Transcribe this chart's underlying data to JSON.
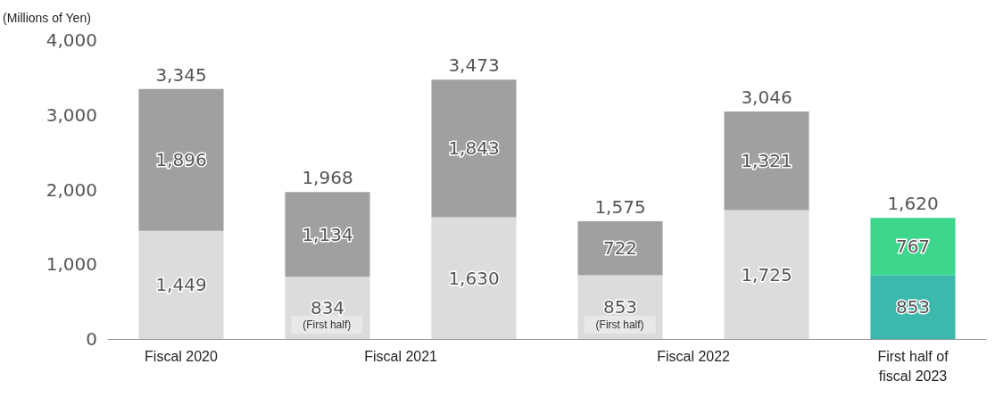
{
  "chart_data": {
    "type": "bar",
    "stacked": true,
    "ylabel": "(Millions of Yen)",
    "categories": [
      "Fiscal 2020",
      "Fiscal 2021",
      null,
      "Fiscal 2022",
      null,
      "First half of\nfiscal 2023"
    ],
    "series": [
      {
        "values": [
          1449,
          834,
          1630,
          853,
          1725,
          853
        ],
        "value_labels": [
          "1,449",
          "834",
          "1,630",
          "853",
          "1,725",
          "853"
        ],
        "colors": [
          "#dcdcdc",
          "#dcdcdc",
          "#dcdcdc",
          "#dcdcdc",
          "#dcdcdc",
          "#3db8ad"
        ]
      },
      {
        "values": [
          1896,
          1134,
          1843,
          722,
          1321,
          767
        ],
        "value_labels": [
          "1,896",
          "1,134",
          "1,843",
          "722",
          "1,321",
          "767"
        ],
        "colors": [
          "#a0a0a0",
          "#a0a0a0",
          "#a0a0a0",
          "#a0a0a0",
          "#a0a0a0",
          "#3dd68c"
        ]
      }
    ],
    "totals": [
      "3,345",
      "1,968",
      "3,473",
      "1,575",
      "3,046",
      "1,620"
    ],
    "annotations": [
      "(First half)",
      "(First half)"
    ],
    "ylim": [
      0,
      4000
    ],
    "yticks": [
      0,
      {
        "value": 1000,
        "label": "1,000"
      },
      {
        "value": 2000,
        "label": "2,000"
      },
      {
        "value": 3000,
        "label": "3,000"
      },
      {
        "value": 4000,
        "label": "4,000"
      }
    ],
    "grid": false
  }
}
